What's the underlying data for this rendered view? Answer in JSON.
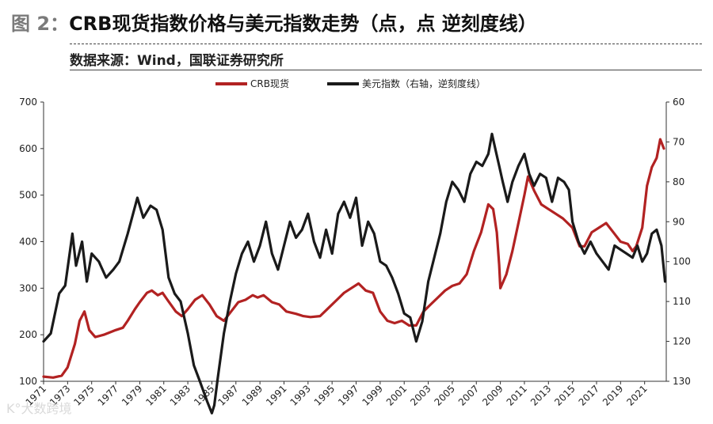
{
  "figure": {
    "prefix": "图 2：",
    "title": "CRB现货指数价格与美元指数走势（点，点 逆刻度线）",
    "source": "数据来源：Wind，国联证券研究所"
  },
  "watermark": "K°大数跨境",
  "chart_data": {
    "type": "line",
    "title": "",
    "xlabel": "",
    "ylabel": "",
    "x_tick_labels": [
      "1971",
      "1973",
      "1975",
      "1977",
      "1979",
      "1981",
      "1983",
      "1985",
      "1987",
      "1989",
      "1991",
      "1993",
      "1995",
      "1997",
      "1999",
      "2001",
      "2003",
      "2005",
      "2007",
      "2009",
      "2011",
      "2013",
      "2015",
      "2017",
      "2019",
      "2021"
    ],
    "xlim": [
      1971,
      2022.8
    ],
    "ylim_left": [
      100,
      700
    ],
    "y_ticks_left": [
      100,
      200,
      300,
      400,
      500,
      600,
      700
    ],
    "ylim_right": [
      60,
      130
    ],
    "right_axis_inverted": true,
    "y_ticks_right": [
      60,
      70,
      80,
      90,
      100,
      110,
      120,
      130
    ],
    "legend_position": "top-center",
    "grid": false,
    "series": [
      {
        "name": "CRB现货",
        "axis": "left",
        "color": "#b22222",
        "x": [
          1971.0,
          1971.8,
          1972.5,
          1973.0,
          1973.6,
          1974.0,
          1974.4,
          1974.8,
          1975.3,
          1976.0,
          1976.5,
          1977.0,
          1977.6,
          1978.0,
          1978.6,
          1979.0,
          1979.6,
          1980.0,
          1980.5,
          1980.9,
          1981.3,
          1982.0,
          1982.5,
          1983.0,
          1983.6,
          1984.2,
          1984.8,
          1985.4,
          1986.0,
          1986.6,
          1987.2,
          1987.8,
          1988.4,
          1988.8,
          1989.3,
          1990.0,
          1990.6,
          1991.2,
          1992.0,
          1992.6,
          1993.2,
          1994.0,
          1994.6,
          1995.2,
          1996.0,
          1996.6,
          1997.2,
          1997.8,
          1998.4,
          1999.0,
          1999.6,
          2000.2,
          2000.8,
          2001.4,
          2002.0,
          2002.6,
          2003.2,
          2003.8,
          2004.4,
          2005.0,
          2005.6,
          2006.2,
          2006.8,
          2007.4,
          2008.0,
          2008.4,
          2008.7,
          2008.9,
          2009.0,
          2009.5,
          2010.0,
          2010.5,
          2011.0,
          2011.3,
          2011.8,
          2012.4,
          2013.0,
          2013.6,
          2014.2,
          2014.6,
          2015.0,
          2015.6,
          2016.0,
          2016.6,
          2017.2,
          2017.8,
          2018.4,
          2019.0,
          2019.6,
          2020.0,
          2020.3,
          2020.8,
          2021.2,
          2021.6,
          2022.0,
          2022.3,
          2022.6
        ],
        "values": [
          110,
          108,
          112,
          130,
          180,
          230,
          250,
          210,
          195,
          200,
          205,
          210,
          215,
          230,
          255,
          270,
          290,
          295,
          285,
          290,
          275,
          250,
          240,
          255,
          275,
          285,
          265,
          240,
          230,
          250,
          270,
          275,
          285,
          280,
          285,
          270,
          265,
          250,
          245,
          240,
          238,
          240,
          255,
          270,
          290,
          300,
          310,
          295,
          290,
          250,
          230,
          225,
          230,
          220,
          220,
          250,
          265,
          280,
          295,
          305,
          310,
          330,
          380,
          420,
          480,
          470,
          420,
          350,
          300,
          330,
          380,
          440,
          500,
          540,
          510,
          480,
          470,
          460,
          450,
          440,
          430,
          390,
          390,
          420,
          430,
          440,
          420,
          400,
          395,
          380,
          390,
          430,
          520,
          560,
          580,
          620,
          600
        ]
      },
      {
        "name": "美元指数（右轴，逆刻度线）",
        "axis": "right",
        "color": "#1a1a1a",
        "x": [
          1971.0,
          1971.6,
          1972.3,
          1972.8,
          1973.4,
          1973.7,
          1974.2,
          1974.6,
          1975.0,
          1975.6,
          1976.2,
          1976.8,
          1977.3,
          1978.0,
          1978.8,
          1979.3,
          1979.9,
          1980.4,
          1980.9,
          1981.4,
          1981.9,
          1982.4,
          1983.0,
          1983.5,
          1984.0,
          1984.6,
          1985.0,
          1985.2,
          1985.5,
          1986.0,
          1986.5,
          1987.0,
          1987.5,
          1988.0,
          1988.5,
          1989.0,
          1989.5,
          1990.0,
          1990.5,
          1991.0,
          1991.5,
          1992.0,
          1992.5,
          1993.0,
          1993.5,
          1994.0,
          1994.5,
          1995.0,
          1995.5,
          1996.0,
          1996.5,
          1997.0,
          1997.5,
          1998.0,
          1998.5,
          1999.0,
          1999.5,
          2000.0,
          2000.5,
          2001.0,
          2001.5,
          2002.0,
          2002.5,
          2003.0,
          2003.5,
          2004.0,
          2004.5,
          2005.0,
          2005.5,
          2006.0,
          2006.5,
          2007.0,
          2007.5,
          2008.0,
          2008.3,
          2008.6,
          2008.9,
          2009.2,
          2009.6,
          2010.0,
          2010.5,
          2011.0,
          2011.4,
          2011.8,
          2012.3,
          2012.8,
          2013.3,
          2013.8,
          2014.3,
          2014.7,
          2015.0,
          2015.5,
          2016.0,
          2016.5,
          2017.0,
          2017.5,
          2018.0,
          2018.5,
          2019.0,
          2019.5,
          2020.0,
          2020.4,
          2020.8,
          2021.2,
          2021.6,
          2022.0,
          2022.4,
          2022.7
        ],
        "values": [
          120,
          118,
          108,
          106,
          93,
          101,
          95,
          105,
          98,
          100,
          104,
          102,
          100,
          93,
          84,
          89,
          86,
          87,
          92,
          104,
          108,
          110,
          118,
          126,
          130,
          135,
          138,
          136,
          129,
          118,
          110,
          103,
          98,
          95,
          100,
          96,
          90,
          98,
          102,
          96,
          90,
          94,
          92,
          88,
          95,
          99,
          92,
          98,
          88,
          85,
          89,
          84,
          96,
          90,
          93,
          100,
          101,
          104,
          108,
          113,
          114,
          120,
          115,
          105,
          99,
          93,
          85,
          80,
          82,
          85,
          78,
          75,
          76,
          73,
          68,
          72,
          76,
          80,
          85,
          80,
          76,
          73,
          78,
          81,
          78,
          79,
          85,
          79,
          80,
          82,
          90,
          95,
          98,
          95,
          98,
          100,
          102,
          96,
          97,
          98,
          99,
          96,
          100,
          98,
          93,
          92,
          96,
          105
        ]
      }
    ]
  }
}
